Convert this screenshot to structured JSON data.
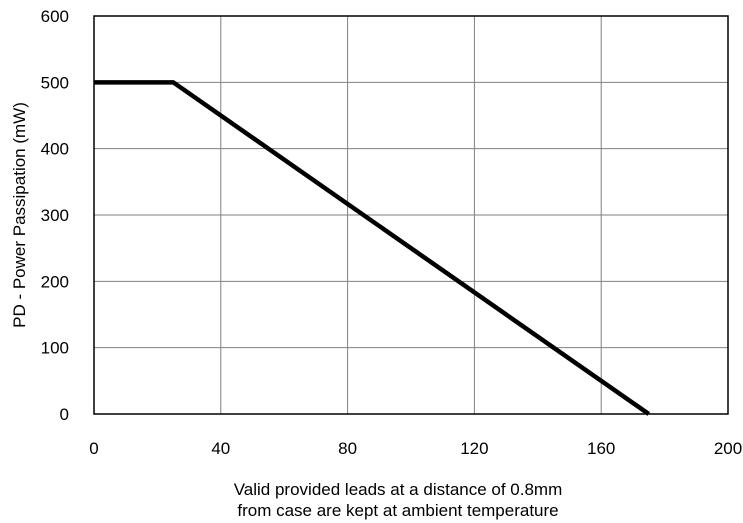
{
  "chart_data": {
    "type": "line",
    "title": "",
    "xlabel_lines": [
      "Valid provided leads at a distance of 0.8mm",
      "from case are kept at ambient temperature"
    ],
    "ylabel": "PD - Power Passipation (mW)",
    "xlim": [
      0,
      200
    ],
    "ylim": [
      0,
      600
    ],
    "x_ticks": [
      0,
      40,
      80,
      120,
      160,
      200
    ],
    "y_ticks": [
      0,
      100,
      200,
      300,
      400,
      500,
      600
    ],
    "grid": true,
    "series": [
      {
        "x": [
          0,
          25,
          175
        ],
        "y": [
          500,
          500,
          0
        ]
      }
    ],
    "colors": {
      "line": "#000000",
      "grid": "#808080",
      "frame": "#000000"
    }
  }
}
